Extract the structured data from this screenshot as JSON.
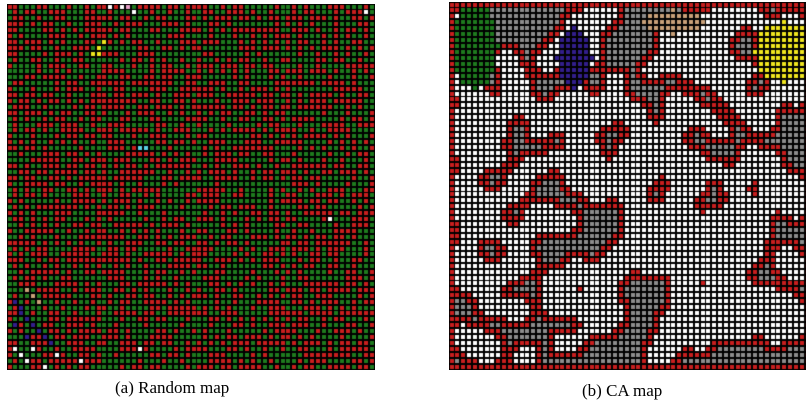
{
  "figure": {
    "panels": [
      {
        "caption": "(a) Random map"
      },
      {
        "caption": "(b) CA map"
      }
    ],
    "grid_cells_per_side": 62,
    "colors": {
      "background": "#000000",
      "green": "#1e7a1e",
      "red": "#c81e1e",
      "white": "#ffffff",
      "gray": "#8c8c8c",
      "yellow": "#f0e61e",
      "tan": "#c8a078",
      "navy": "#321e8c",
      "cyan": "#5ad2e6",
      "pink": "#e6a0c8"
    }
  }
}
